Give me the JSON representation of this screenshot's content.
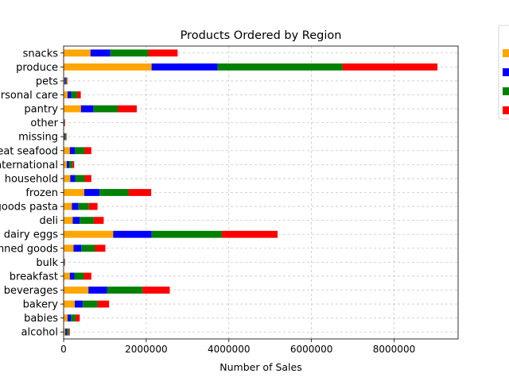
{
  "chart_data": {
    "type": "bar",
    "orientation": "horizontal",
    "stacked": true,
    "title": "Products Ordered by Region",
    "xlabel": "Number of Sales",
    "ylabel": "",
    "xlim": [
      0,
      9550000
    ],
    "xticks": [
      0,
      2000000,
      4000000,
      6000000,
      8000000
    ],
    "xtick_labels": [
      "0",
      "2000000",
      "4000000",
      "6000000",
      "8000000"
    ],
    "grid": true,
    "legend_position": "upper-right-outside",
    "categories": [
      "snacks",
      "produce",
      "pets",
      "personal care",
      "pantry",
      "other",
      "missing",
      "meat seafood",
      "international",
      "household",
      "frozen",
      "dry goods pasta",
      "deli",
      "dairy eggs",
      "canned goods",
      "bulk",
      "breakfast",
      "beverages",
      "bakery",
      "babies",
      "alcohol"
    ],
    "series": [
      {
        "color": "#ffa500",
        "values": [
          650000,
          2130000,
          22000,
          95000,
          420000,
          8000,
          14000,
          150000,
          75000,
          160000,
          500000,
          200000,
          220000,
          1200000,
          240000,
          8000,
          150000,
          600000,
          270000,
          95000,
          40000
        ]
      },
      {
        "color": "#0000ff",
        "values": [
          480000,
          1600000,
          25000,
          90000,
          300000,
          7000,
          14000,
          120000,
          60000,
          120000,
          370000,
          160000,
          170000,
          930000,
          190000,
          7000,
          110000,
          450000,
          190000,
          85000,
          40000
        ]
      },
      {
        "color": "#008000",
        "values": [
          920000,
          3020000,
          26000,
          140000,
          590000,
          10000,
          26000,
          230000,
          80000,
          230000,
          700000,
          250000,
          340000,
          1700000,
          330000,
          10000,
          230000,
          860000,
          360000,
          110000,
          50000
        ]
      },
      {
        "color": "#ff0000",
        "values": [
          710000,
          2300000,
          17000,
          90000,
          460000,
          10000,
          16000,
          170000,
          40000,
          160000,
          550000,
          210000,
          240000,
          1350000,
          250000,
          8000,
          180000,
          660000,
          280000,
          100000,
          20000
        ]
      }
    ]
  }
}
